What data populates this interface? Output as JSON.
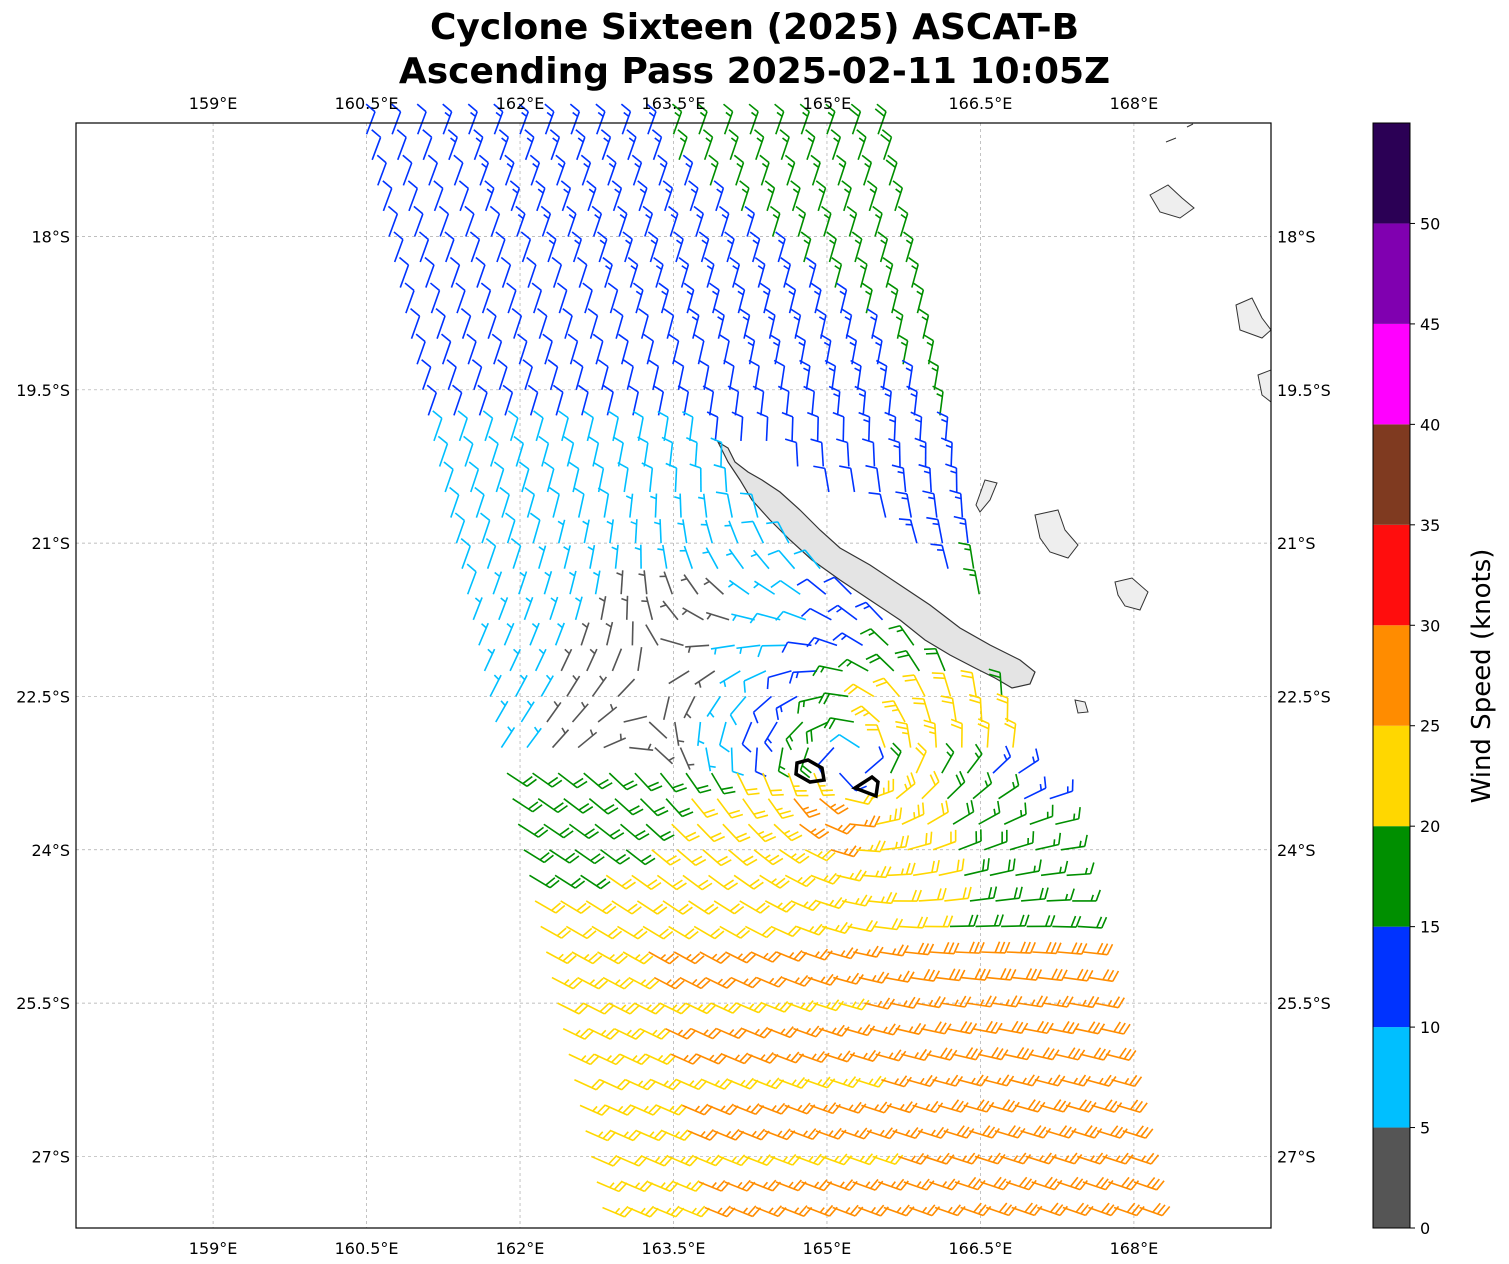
{
  "title_line1": "Cyclone Sixteen (2025) ASCAT-B",
  "title_line2": "Ascending Pass 2025-02-11 10:05Z",
  "chart_data": {
    "type": "map",
    "plot": "wind barbs",
    "title": "Cyclone Sixteen (2025) ASCAT-B Ascending Pass 2025-02-11 10:05Z",
    "lon_ticks": [
      "159°E",
      "160.5°E",
      "162°E",
      "163.5°E",
      "165°E",
      "166.5°E",
      "168°E"
    ],
    "lon_tick_values": [
      159,
      160.5,
      162,
      163.5,
      165,
      166.5,
      168
    ],
    "lat_ticks": [
      "18°S",
      "19.5°S",
      "21°S",
      "22.5°S",
      "24°S",
      "25.5°S",
      "27°S"
    ],
    "lat_tick_values": [
      -18,
      -19.5,
      -21,
      -22.5,
      -24,
      -25.5,
      -27
    ],
    "lon_range": [
      157.66,
      169.34
    ],
    "lat_range": [
      -27.7,
      -16.89
    ],
    "grid": true,
    "colorbar": {
      "label": "Wind Speed (knots)",
      "ticks": [
        "0",
        "5",
        "10",
        "15",
        "20",
        "25",
        "30",
        "35",
        "40",
        "45",
        "50"
      ],
      "range": [
        0,
        55
      ],
      "colors": [
        "#555555",
        "#00bfff",
        "#0033ff",
        "#008f00",
        "#ffd700",
        "#ff8c00",
        "#ff0d0d",
        "#7f3a20",
        "#ff00ff",
        "#8000b0",
        "#2b0055"
      ]
    }
  }
}
